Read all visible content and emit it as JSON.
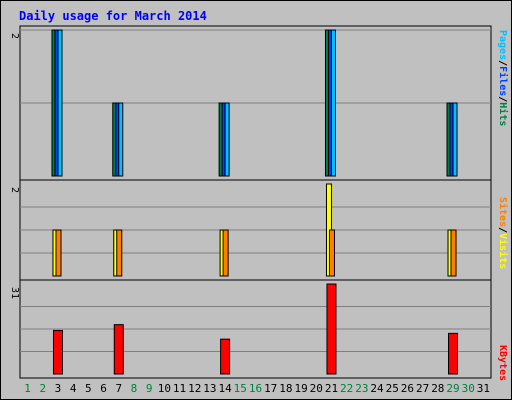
{
  "colors": {
    "background": "#C0C0C0",
    "title": "#0000FF",
    "hits": "#008040",
    "files": "#0040FF",
    "pages": "#00C0FF",
    "visits": "#FFFF00",
    "sites": "#FF8000",
    "kbytes": "#FF0000",
    "weekend_label": "#008040",
    "weekday_label": "#000000"
  },
  "chart_data": {
    "type": "bar",
    "title": "Daily usage for March 2014",
    "days": [
      "1",
      "2",
      "3",
      "4",
      "5",
      "6",
      "7",
      "8",
      "9",
      "10",
      "11",
      "12",
      "13",
      "14",
      "15",
      "16",
      "17",
      "18",
      "19",
      "20",
      "21",
      "22",
      "23",
      "24",
      "25",
      "26",
      "27",
      "28",
      "29",
      "30",
      "31"
    ],
    "weekend_days": [
      1,
      2,
      8,
      9,
      15,
      16,
      22,
      23,
      29,
      30
    ],
    "panels": [
      {
        "id": "hits-files-pages",
        "ymax": 2,
        "ymax_label": "2",
        "legend": [
          {
            "label": "Pages",
            "color_key": "pages"
          },
          {
            "label": "Files",
            "color_key": "files"
          },
          {
            "label": "Hits",
            "color_key": "hits"
          }
        ],
        "series": [
          {
            "name": "Hits",
            "color_key": "hits",
            "values": [
              0,
              0,
              2,
              0,
              0,
              0,
              1,
              0,
              0,
              0,
              0,
              0,
              0,
              1,
              0,
              0,
              0,
              0,
              0,
              0,
              2,
              0,
              0,
              0,
              0,
              0,
              0,
              0,
              1,
              0,
              0
            ]
          },
          {
            "name": "Files",
            "color_key": "files",
            "values": [
              0,
              0,
              2,
              0,
              0,
              0,
              1,
              0,
              0,
              0,
              0,
              0,
              0,
              1,
              0,
              0,
              0,
              0,
              0,
              0,
              2,
              0,
              0,
              0,
              0,
              0,
              0,
              0,
              1,
              0,
              0
            ]
          },
          {
            "name": "Pages",
            "color_key": "pages",
            "values": [
              0,
              0,
              2,
              0,
              0,
              0,
              1,
              0,
              0,
              0,
              0,
              0,
              0,
              1,
              0,
              0,
              0,
              0,
              0,
              0,
              2,
              0,
              0,
              0,
              0,
              0,
              0,
              0,
              1,
              0,
              0
            ]
          }
        ]
      },
      {
        "id": "visits-sites",
        "ymax": 2,
        "ymax_label": "2",
        "legend": [
          {
            "label": "Sites",
            "color_key": "sites"
          },
          {
            "label": "Visits",
            "color_key": "visits"
          }
        ],
        "series": [
          {
            "name": "Visits",
            "color_key": "visits",
            "values": [
              0,
              0,
              1,
              0,
              0,
              0,
              1,
              0,
              0,
              0,
              0,
              0,
              0,
              1,
              0,
              0,
              0,
              0,
              0,
              0,
              2,
              0,
              0,
              0,
              0,
              0,
              0,
              0,
              1,
              0,
              0
            ]
          },
          {
            "name": "Sites",
            "color_key": "sites",
            "values": [
              0,
              0,
              1,
              0,
              0,
              0,
              1,
              0,
              0,
              0,
              0,
              0,
              0,
              1,
              0,
              0,
              0,
              0,
              0,
              0,
              1,
              0,
              0,
              0,
              0,
              0,
              0,
              0,
              1,
              0,
              0
            ]
          }
        ]
      },
      {
        "id": "kbytes",
        "ymax": 31,
        "ymax_label": "31",
        "legend": [
          {
            "label": "KBytes",
            "color_key": "kbytes"
          }
        ],
        "series": [
          {
            "name": "KBytes",
            "color_key": "kbytes",
            "values": [
              0,
              0,
              15,
              0,
              0,
              0,
              17,
              0,
              0,
              0,
              0,
              0,
              0,
              12,
              0,
              0,
              0,
              0,
              0,
              0,
              31,
              0,
              0,
              0,
              0,
              0,
              0,
              0,
              14,
              0,
              0
            ]
          }
        ]
      }
    ]
  }
}
